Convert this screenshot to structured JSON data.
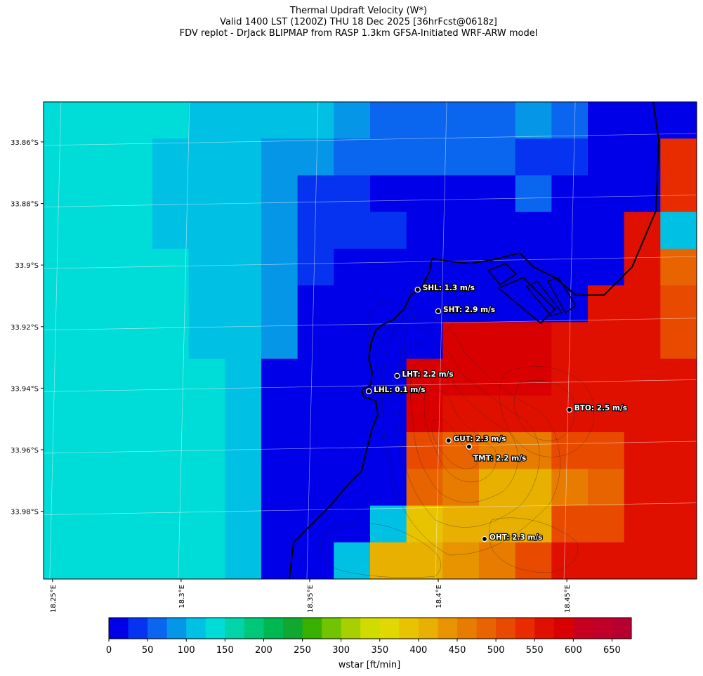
{
  "title": {
    "line1": "Thermal Updraft Velocity (W*)",
    "line2": "Valid 1400 LST (1200Z) THU 18 Dec 2025 [36hrFcst@0618z]",
    "line3": "FDV replot - DrJack BLIPMAP from RASP 1.3km GFSA-Initiated WRF-ARW model"
  },
  "chart_data": {
    "type": "heatmap",
    "title": "Thermal Updraft Velocity (W*)",
    "colorbar": {
      "label": "wstar [ft/min]",
      "ticks": [
        0,
        50,
        100,
        150,
        200,
        250,
        300,
        350,
        400,
        450,
        500,
        550,
        600,
        650
      ],
      "range": [
        0,
        675
      ],
      "step": 25,
      "colors": [
        "#0000e8",
        "#0533f0",
        "#0a66ee",
        "#0596e8",
        "#00c1e4",
        "#00dcd8",
        "#00d4a8",
        "#00c878",
        "#00b850",
        "#10a830",
        "#38b000",
        "#70c400",
        "#a8d000",
        "#d0dc00",
        "#e0d800",
        "#e8c400",
        "#e8b000",
        "#e89400",
        "#e87c00",
        "#e86400",
        "#e84a00",
        "#e82c00",
        "#e01000",
        "#d80000",
        "#c80020",
        "#c00028",
        "#b80030"
      ]
    },
    "lat_ticks": [
      "33.86°S",
      "33.88°S",
      "33.9°S",
      "33.92°S",
      "33.94°S",
      "33.96°S",
      "33.98°S"
    ],
    "lon_ticks": [
      "18.25°E",
      "18.3°E",
      "18.35°E",
      "18.4°E",
      "18.45°E"
    ],
    "grid_cols": 18,
    "grid_rows": 13,
    "grid_values_ftmin": [
      [
        140,
        140,
        135,
        135,
        110,
        110,
        100,
        100,
        80,
        60,
        60,
        60,
        60,
        80,
        60,
        20,
        20,
        20
      ],
      [
        140,
        140,
        140,
        110,
        110,
        110,
        90,
        90,
        60,
        60,
        60,
        60,
        60,
        40,
        40,
        15,
        20,
        525
      ],
      [
        140,
        140,
        140,
        110,
        110,
        110,
        90,
        40,
        40,
        20,
        20,
        20,
        20,
        60,
        20,
        20,
        20,
        525
      ],
      [
        140,
        140,
        140,
        110,
        110,
        110,
        90,
        40,
        40,
        30,
        20,
        20,
        20,
        20,
        20,
        10,
        550,
        110
      ],
      [
        140,
        140,
        140,
        140,
        110,
        110,
        90,
        40,
        10,
        10,
        10,
        20,
        20,
        20,
        20,
        10,
        550,
        480
      ],
      [
        140,
        140,
        140,
        140,
        110,
        110,
        90,
        10,
        10,
        0,
        10,
        0,
        0,
        10,
        0,
        560,
        550,
        500
      ],
      [
        140,
        140,
        140,
        140,
        110,
        110,
        80,
        10,
        10,
        10,
        10,
        590,
        590,
        590,
        560,
        550,
        550,
        500
      ],
      [
        140,
        140,
        140,
        140,
        125,
        110,
        10,
        10,
        10,
        10,
        590,
        590,
        590,
        590,
        560,
        550,
        550,
        550
      ],
      [
        140,
        140,
        140,
        140,
        125,
        110,
        10,
        10,
        10,
        10,
        590,
        560,
        560,
        560,
        550,
        560,
        550,
        550
      ],
      [
        140,
        140,
        140,
        140,
        125,
        100,
        10,
        10,
        10,
        10,
        500,
        490,
        450,
        450,
        510,
        520,
        550,
        550
      ],
      [
        140,
        140,
        140,
        140,
        125,
        100,
        10,
        10,
        10,
        10,
        490,
        460,
        410,
        410,
        450,
        490,
        550,
        550
      ],
      [
        140,
        140,
        140,
        140,
        125,
        100,
        10,
        10,
        10,
        100,
        390,
        400,
        400,
        410,
        510,
        520,
        550,
        550
      ],
      [
        140,
        140,
        140,
        140,
        125,
        100,
        10,
        10,
        100,
        400,
        400,
        430,
        450,
        500,
        550,
        550,
        550,
        550
      ]
    ],
    "stations": [
      {
        "name": "SHL",
        "label": "SHL: 1.3 m/s",
        "lon": 18.392,
        "lat": -33.908
      },
      {
        "name": "SHT",
        "label": "SHT: 2.9 m/s",
        "lon": 18.4,
        "lat": -33.915
      },
      {
        "name": "LHT",
        "label": "LHT: 2.2 m/s",
        "lon": 18.384,
        "lat": -33.936
      },
      {
        "name": "LHL",
        "label": "LHL: 0.1 m/s",
        "lon": 18.373,
        "lat": -33.941
      },
      {
        "name": "BTO",
        "label": "BTO: 2.5 m/s",
        "lon": 18.451,
        "lat": -33.947
      },
      {
        "name": "GUT",
        "label": "GUT: 2.3 m/s",
        "lon": 18.404,
        "lat": -33.957
      },
      {
        "name": "TMT",
        "label": "TMT: 2.2 m/s",
        "lon": 18.412,
        "lat": -33.959
      },
      {
        "name": "OHT",
        "label": "OHT: 2.3 m/s",
        "lon": 18.418,
        "lat": -33.989
      }
    ]
  }
}
